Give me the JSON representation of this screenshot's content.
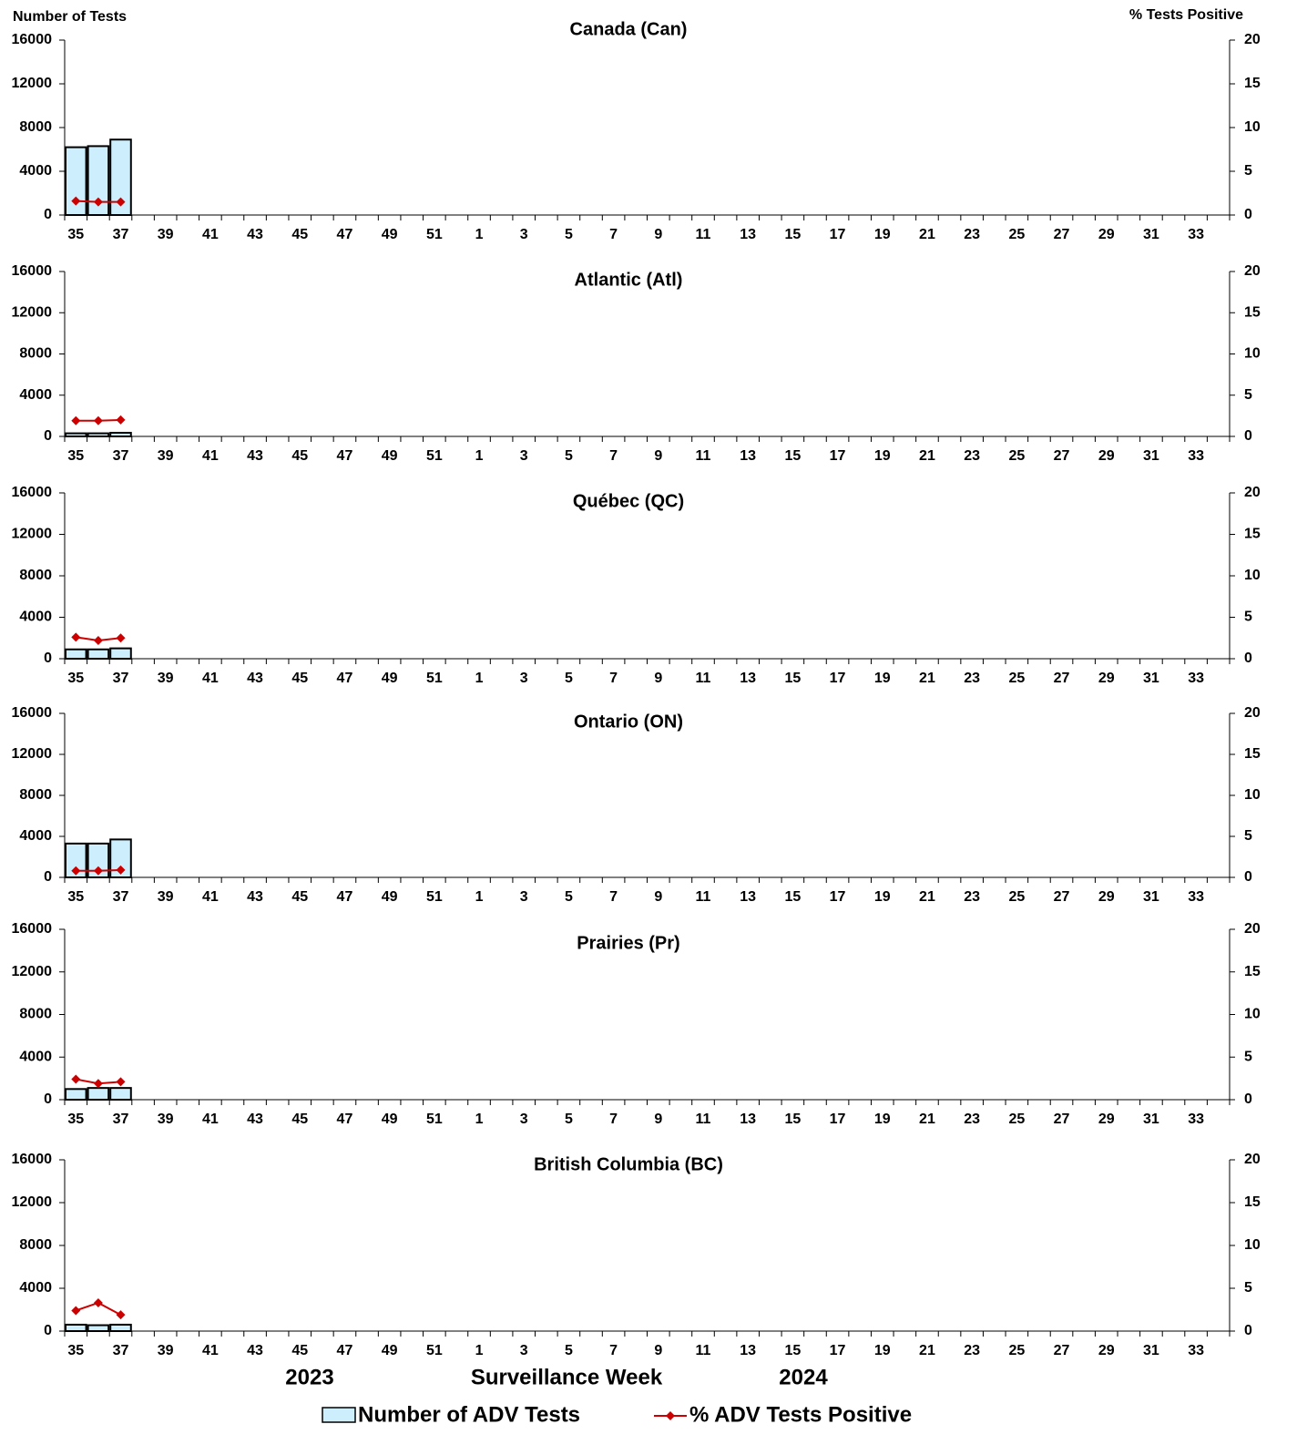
{
  "chart_data": {
    "type": "bar-line",
    "y_label": "Number of Tests",
    "y2_label": "% Tests Positive",
    "x_label": "Surveillance Week",
    "year_labels": [
      "2023",
      "2024"
    ],
    "categories": [
      "35",
      null,
      "37",
      null,
      "39",
      null,
      "41",
      null,
      "43",
      null,
      "45",
      null,
      "47",
      null,
      "49",
      null,
      "51",
      null,
      "1",
      null,
      "3",
      null,
      "5",
      null,
      "7",
      null,
      "9",
      null,
      "11",
      null,
      "13",
      null,
      "15",
      null,
      "17",
      null,
      "19",
      null,
      "21",
      null,
      "23",
      null,
      "25",
      null,
      "27",
      null,
      "29",
      null,
      "31",
      null,
      "33",
      null
    ],
    "ylim": [
      0,
      16000
    ],
    "yticks": [
      0,
      4000,
      8000,
      12000,
      16000
    ],
    "y2lim": [
      0,
      20
    ],
    "y2ticks": [
      0,
      5,
      10,
      15,
      20
    ],
    "series": [
      {
        "name": "Number of ADV Tests",
        "color": "#cdeefc",
        "type": "bar"
      },
      {
        "name": "% ADV Tests Positive",
        "color": "#cc0000",
        "type": "line",
        "axis": "y2"
      }
    ],
    "panels": [
      {
        "title": "Canada (Can)",
        "series": [
          {
            "values": [
              6200,
              6300,
              6900,
              null,
              null,
              null,
              null,
              null,
              null,
              null,
              null,
              null,
              null,
              null,
              null,
              null,
              null,
              null,
              null,
              null,
              null,
              null,
              null,
              null,
              null,
              null,
              null,
              null,
              null,
              null,
              null,
              null,
              null,
              null,
              null,
              null,
              null,
              null,
              null,
              null,
              null,
              null,
              null,
              null,
              null,
              null,
              null,
              null,
              null,
              null,
              null,
              null
            ]
          },
          {
            "values": [
              1.6,
              1.5,
              1.5,
              null,
              null,
              null,
              null,
              null,
              null,
              null,
              null,
              null,
              null,
              null,
              null,
              null,
              null,
              null,
              null,
              null,
              null,
              null,
              null,
              null,
              null,
              null,
              null,
              null,
              null,
              null,
              null,
              null,
              null,
              null,
              null,
              null,
              null,
              null,
              null,
              null,
              null,
              null,
              null,
              null,
              null,
              null,
              null,
              null,
              null,
              null,
              null,
              null
            ]
          }
        ]
      },
      {
        "title": "Atlantic (Atl)",
        "series": [
          {
            "values": [
              300,
              300,
              350,
              null,
              null,
              null,
              null,
              null,
              null,
              null,
              null,
              null,
              null,
              null,
              null,
              null,
              null,
              null,
              null,
              null,
              null,
              null,
              null,
              null,
              null,
              null,
              null,
              null,
              null,
              null,
              null,
              null,
              null,
              null,
              null,
              null,
              null,
              null,
              null,
              null,
              null,
              null,
              null,
              null,
              null,
              null,
              null,
              null,
              null,
              null,
              null,
              null
            ]
          },
          {
            "values": [
              1.9,
              1.9,
              2.0,
              null,
              null,
              null,
              null,
              null,
              null,
              null,
              null,
              null,
              null,
              null,
              null,
              null,
              null,
              null,
              null,
              null,
              null,
              null,
              null,
              null,
              null,
              null,
              null,
              null,
              null,
              null,
              null,
              null,
              null,
              null,
              null,
              null,
              null,
              null,
              null,
              null,
              null,
              null,
              null,
              null,
              null,
              null,
              null,
              null,
              null,
              null,
              null,
              null
            ]
          }
        ]
      },
      {
        "title": "Québec (QC)",
        "series": [
          {
            "values": [
              900,
              900,
              1000,
              null,
              null,
              null,
              null,
              null,
              null,
              null,
              null,
              null,
              null,
              null,
              null,
              null,
              null,
              null,
              null,
              null,
              null,
              null,
              null,
              null,
              null,
              null,
              null,
              null,
              null,
              null,
              null,
              null,
              null,
              null,
              null,
              null,
              null,
              null,
              null,
              null,
              null,
              null,
              null,
              null,
              null,
              null,
              null,
              null,
              null,
              null,
              null,
              null
            ]
          },
          {
            "values": [
              2.6,
              2.2,
              2.5,
              null,
              null,
              null,
              null,
              null,
              null,
              null,
              null,
              null,
              null,
              null,
              null,
              null,
              null,
              null,
              null,
              null,
              null,
              null,
              null,
              null,
              null,
              null,
              null,
              null,
              null,
              null,
              null,
              null,
              null,
              null,
              null,
              null,
              null,
              null,
              null,
              null,
              null,
              null,
              null,
              null,
              null,
              null,
              null,
              null,
              null,
              null,
              null,
              null
            ]
          }
        ]
      },
      {
        "title": "Ontario (ON)",
        "series": [
          {
            "values": [
              3300,
              3300,
              3700,
              null,
              null,
              null,
              null,
              null,
              null,
              null,
              null,
              null,
              null,
              null,
              null,
              null,
              null,
              null,
              null,
              null,
              null,
              null,
              null,
              null,
              null,
              null,
              null,
              null,
              null,
              null,
              null,
              null,
              null,
              null,
              null,
              null,
              null,
              null,
              null,
              null,
              null,
              null,
              null,
              null,
              null,
              null,
              null,
              null,
              null,
              null,
              null,
              null
            ]
          },
          {
            "values": [
              0.8,
              0.8,
              0.9,
              null,
              null,
              null,
              null,
              null,
              null,
              null,
              null,
              null,
              null,
              null,
              null,
              null,
              null,
              null,
              null,
              null,
              null,
              null,
              null,
              null,
              null,
              null,
              null,
              null,
              null,
              null,
              null,
              null,
              null,
              null,
              null,
              null,
              null,
              null,
              null,
              null,
              null,
              null,
              null,
              null,
              null,
              null,
              null,
              null,
              null,
              null,
              null,
              null
            ]
          }
        ]
      },
      {
        "title": "Prairies (Pr)",
        "series": [
          {
            "values": [
              1000,
              1100,
              1100,
              null,
              null,
              null,
              null,
              null,
              null,
              null,
              null,
              null,
              null,
              null,
              null,
              null,
              null,
              null,
              null,
              null,
              null,
              null,
              null,
              null,
              null,
              null,
              null,
              null,
              null,
              null,
              null,
              null,
              null,
              null,
              null,
              null,
              null,
              null,
              null,
              null,
              null,
              null,
              null,
              null,
              null,
              null,
              null,
              null,
              null,
              null,
              null,
              null
            ]
          },
          {
            "values": [
              2.4,
              1.9,
              2.1,
              null,
              null,
              null,
              null,
              null,
              null,
              null,
              null,
              null,
              null,
              null,
              null,
              null,
              null,
              null,
              null,
              null,
              null,
              null,
              null,
              null,
              null,
              null,
              null,
              null,
              null,
              null,
              null,
              null,
              null,
              null,
              null,
              null,
              null,
              null,
              null,
              null,
              null,
              null,
              null,
              null,
              null,
              null,
              null,
              null,
              null,
              null,
              null,
              null
            ]
          }
        ]
      },
      {
        "title": "British Columbia (BC)",
        "series": [
          {
            "values": [
              600,
              550,
              600,
              null,
              null,
              null,
              null,
              null,
              null,
              null,
              null,
              null,
              null,
              null,
              null,
              null,
              null,
              null,
              null,
              null,
              null,
              null,
              null,
              null,
              null,
              null,
              null,
              null,
              null,
              null,
              null,
              null,
              null,
              null,
              null,
              null,
              null,
              null,
              null,
              null,
              null,
              null,
              null,
              null,
              null,
              null,
              null,
              null,
              null,
              null,
              null,
              null
            ]
          },
          {
            "values": [
              2.4,
              3.3,
              1.9,
              null,
              null,
              null,
              null,
              null,
              null,
              null,
              null,
              null,
              null,
              null,
              null,
              null,
              null,
              null,
              null,
              null,
              null,
              null,
              null,
              null,
              null,
              null,
              null,
              null,
              null,
              null,
              null,
              null,
              null,
              null,
              null,
              null,
              null,
              null,
              null,
              null,
              null,
              null,
              null,
              null,
              null,
              null,
              null,
              null,
              null,
              null,
              null,
              null
            ]
          }
        ]
      }
    ]
  }
}
